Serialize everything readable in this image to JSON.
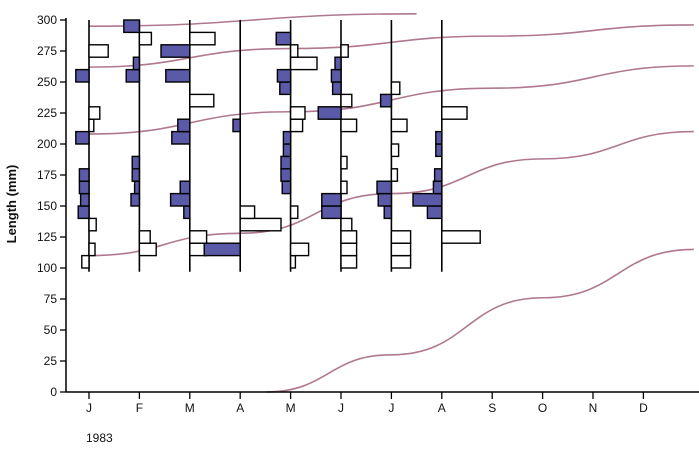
{
  "chart_data": {
    "type": "histogram-timeseries",
    "title": "",
    "ylabel": "Length (mm)",
    "xlabel": "",
    "year_label": "1983",
    "ylim": [
      0,
      305
    ],
    "yticks": [
      0,
      25,
      50,
      75,
      100,
      125,
      150,
      175,
      200,
      225,
      250,
      275,
      300
    ],
    "months": [
      "J",
      "F",
      "M",
      "A",
      "M",
      "J",
      "J",
      "A",
      "S",
      "O",
      "N",
      "D"
    ],
    "grid": false,
    "colors": {
      "filled_bar": "#5a5aa8",
      "open_bar": "#ffffff",
      "bar_edge": "#000000",
      "growth_curve": "#b07890",
      "axis": "#000000"
    },
    "growth_curves": [
      {
        "points": [
          [
            0,
            295
          ],
          [
            6.5,
            305
          ]
        ]
      },
      {
        "points": [
          [
            0,
            262
          ],
          [
            4,
            277
          ],
          [
            8,
            287
          ],
          [
            12,
            296
          ]
        ]
      },
      {
        "points": [
          [
            0,
            208
          ],
          [
            4,
            226
          ],
          [
            8,
            245
          ],
          [
            12,
            263
          ]
        ]
      },
      {
        "points": [
          [
            0,
            110
          ],
          [
            3,
            128
          ],
          [
            6,
            160
          ],
          [
            9,
            188
          ],
          [
            12,
            210
          ]
        ]
      },
      {
        "points": [
          [
            3.5,
            0
          ],
          [
            6,
            30
          ],
          [
            9,
            76
          ],
          [
            12,
            115
          ]
        ]
      }
    ],
    "histograms": [
      {
        "month": "J",
        "bars": [
          {
            "y": 100,
            "v": -0.6,
            "filled": false
          },
          {
            "y": 110,
            "v": 0.5,
            "filled": false
          },
          {
            "y": 130,
            "v": 0.6,
            "filled": false
          },
          {
            "y": 140,
            "v": -0.9,
            "filled": true
          },
          {
            "y": 150,
            "v": -0.7,
            "filled": true
          },
          {
            "y": 160,
            "v": -0.8,
            "filled": true
          },
          {
            "y": 170,
            "v": -0.8,
            "filled": true
          },
          {
            "y": 200,
            "v": -1.1,
            "filled": true
          },
          {
            "y": 210,
            "v": 0.4,
            "filled": false
          },
          {
            "y": 220,
            "v": 0.9,
            "filled": false
          },
          {
            "y": 250,
            "v": -1.1,
            "filled": true
          },
          {
            "y": 270,
            "v": 1.6,
            "filled": false
          }
        ]
      },
      {
        "month": "F",
        "bars": [
          {
            "y": 110,
            "v": 1.4,
            "filled": false
          },
          {
            "y": 120,
            "v": 0.9,
            "filled": false
          },
          {
            "y": 150,
            "v": -0.7,
            "filled": true
          },
          {
            "y": 160,
            "v": -0.4,
            "filled": true
          },
          {
            "y": 170,
            "v": -0.6,
            "filled": true
          },
          {
            "y": 180,
            "v": -0.6,
            "filled": true
          },
          {
            "y": 250,
            "v": -1.1,
            "filled": true
          },
          {
            "y": 260,
            "v": -0.5,
            "filled": true
          },
          {
            "y": 280,
            "v": 1.0,
            "filled": false
          },
          {
            "y": 290,
            "v": -1.3,
            "filled": true
          }
        ]
      },
      {
        "month": "M",
        "bars": [
          {
            "y": 110,
            "v": 1.4,
            "filled": false
          },
          {
            "y": 120,
            "v": 1.4,
            "filled": false
          },
          {
            "y": 140,
            "v": -0.5,
            "filled": true
          },
          {
            "y": 150,
            "v": -1.6,
            "filled": true
          },
          {
            "y": 160,
            "v": -0.8,
            "filled": true
          },
          {
            "y": 200,
            "v": -1.5,
            "filled": true
          },
          {
            "y": 210,
            "v": -1.0,
            "filled": true
          },
          {
            "y": 230,
            "v": 2.0,
            "filled": false
          },
          {
            "y": 250,
            "v": -2.0,
            "filled": true
          },
          {
            "y": 270,
            "v": -2.4,
            "filled": true
          },
          {
            "y": 280,
            "v": 2.1,
            "filled": false
          }
        ]
      },
      {
        "month": "A",
        "bars": [
          {
            "y": 110,
            "v": -3.0,
            "filled": true
          },
          {
            "y": 130,
            "v": 3.4,
            "filled": false
          },
          {
            "y": 140,
            "v": 1.2,
            "filled": false
          },
          {
            "y": 210,
            "v": -0.6,
            "filled": true
          }
        ]
      },
      {
        "month": "M",
        "bars": [
          {
            "y": 100,
            "v": 0.4,
            "filled": false
          },
          {
            "y": 110,
            "v": 1.5,
            "filled": false
          },
          {
            "y": 140,
            "v": 0.6,
            "filled": false
          },
          {
            "y": 160,
            "v": -0.7,
            "filled": true
          },
          {
            "y": 170,
            "v": -0.8,
            "filled": true
          },
          {
            "y": 180,
            "v": -0.8,
            "filled": true
          },
          {
            "y": 190,
            "v": -0.6,
            "filled": true
          },
          {
            "y": 200,
            "v": -0.6,
            "filled": true
          },
          {
            "y": 210,
            "v": 1.0,
            "filled": false
          },
          {
            "y": 220,
            "v": 1.2,
            "filled": false
          },
          {
            "y": 240,
            "v": -0.9,
            "filled": true
          },
          {
            "y": 250,
            "v": -1.1,
            "filled": true
          },
          {
            "y": 260,
            "v": 2.2,
            "filled": false
          },
          {
            "y": 270,
            "v": 0.6,
            "filled": false
          },
          {
            "y": 280,
            "v": -1.2,
            "filled": true
          }
        ]
      },
      {
        "month": "J",
        "bars": [
          {
            "y": 100,
            "v": 1.3,
            "filled": false
          },
          {
            "y": 110,
            "v": 1.3,
            "filled": false
          },
          {
            "y": 120,
            "v": 1.3,
            "filled": false
          },
          {
            "y": 130,
            "v": 0.9,
            "filled": false
          },
          {
            "y": 140,
            "v": -1.6,
            "filled": true
          },
          {
            "y": 150,
            "v": -1.6,
            "filled": true
          },
          {
            "y": 160,
            "v": 0.5,
            "filled": false
          },
          {
            "y": 180,
            "v": 0.5,
            "filled": false
          },
          {
            "y": 210,
            "v": 1.3,
            "filled": false
          },
          {
            "y": 220,
            "v": -1.9,
            "filled": true
          },
          {
            "y": 230,
            "v": 0.9,
            "filled": false
          },
          {
            "y": 240,
            "v": -0.7,
            "filled": true
          },
          {
            "y": 250,
            "v": -0.8,
            "filled": true
          },
          {
            "y": 260,
            "v": -0.5,
            "filled": true
          },
          {
            "y": 270,
            "v": 0.6,
            "filled": false
          }
        ]
      },
      {
        "month": "J",
        "bars": [
          {
            "y": 100,
            "v": 1.6,
            "filled": false
          },
          {
            "y": 110,
            "v": 1.6,
            "filled": false
          },
          {
            "y": 120,
            "v": 1.6,
            "filled": false
          },
          {
            "y": 140,
            "v": -0.6,
            "filled": true
          },
          {
            "y": 150,
            "v": -1.1,
            "filled": true
          },
          {
            "y": 160,
            "v": -1.2,
            "filled": true
          },
          {
            "y": 170,
            "v": 0.5,
            "filled": false
          },
          {
            "y": 190,
            "v": 0.6,
            "filled": false
          },
          {
            "y": 210,
            "v": 1.3,
            "filled": false
          },
          {
            "y": 230,
            "v": -0.9,
            "filled": true
          },
          {
            "y": 240,
            "v": 0.7,
            "filled": false
          }
        ]
      },
      {
        "month": "A",
        "bars": [
          {
            "y": 120,
            "v": 3.2,
            "filled": false
          },
          {
            "y": 140,
            "v": -1.2,
            "filled": true
          },
          {
            "y": 150,
            "v": -2.4,
            "filled": true
          },
          {
            "y": 160,
            "v": -0.7,
            "filled": true
          },
          {
            "y": 170,
            "v": -0.6,
            "filled": true
          },
          {
            "y": 190,
            "v": -0.5,
            "filled": true
          },
          {
            "y": 200,
            "v": -0.5,
            "filled": true
          },
          {
            "y": 220,
            "v": 2.1,
            "filled": false
          }
        ]
      }
    ]
  }
}
